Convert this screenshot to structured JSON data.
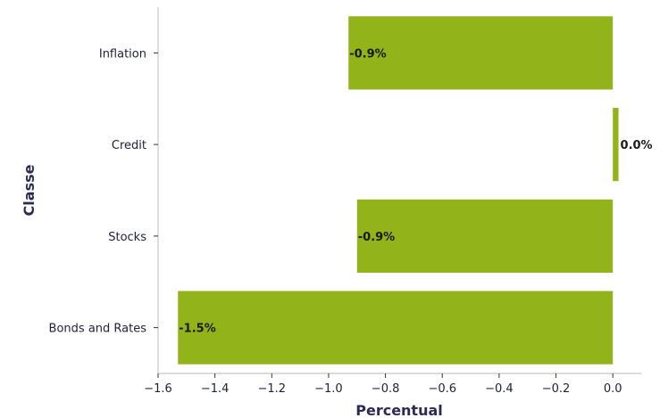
{
  "chart_data": {
    "type": "bar",
    "orientation": "horizontal",
    "categories": [
      "Inflation",
      "Credit",
      "Stocks",
      "Bonds and Rates"
    ],
    "values": [
      -0.93,
      0.02,
      -0.9,
      -1.53
    ],
    "data_labels": [
      "-0.9%",
      "0.0%",
      "-0.9%",
      "-1.5%"
    ],
    "xlabel": "Percentual",
    "ylabel": "Classe",
    "xlim": [
      -1.6,
      0.1
    ],
    "xticks": [
      -1.6,
      -1.4,
      -1.2,
      -1.0,
      -0.8,
      -0.6,
      -0.4,
      -0.2,
      0.0
    ],
    "xtick_labels": [
      "−1.6",
      "−1.4",
      "−1.2",
      "−1.0",
      "−0.8",
      "−0.6",
      "−0.4",
      "−0.2",
      "0.0"
    ],
    "bar_color": "#92b31a",
    "axis_color": "#c8c8c8",
    "grid": false,
    "legend": false
  }
}
